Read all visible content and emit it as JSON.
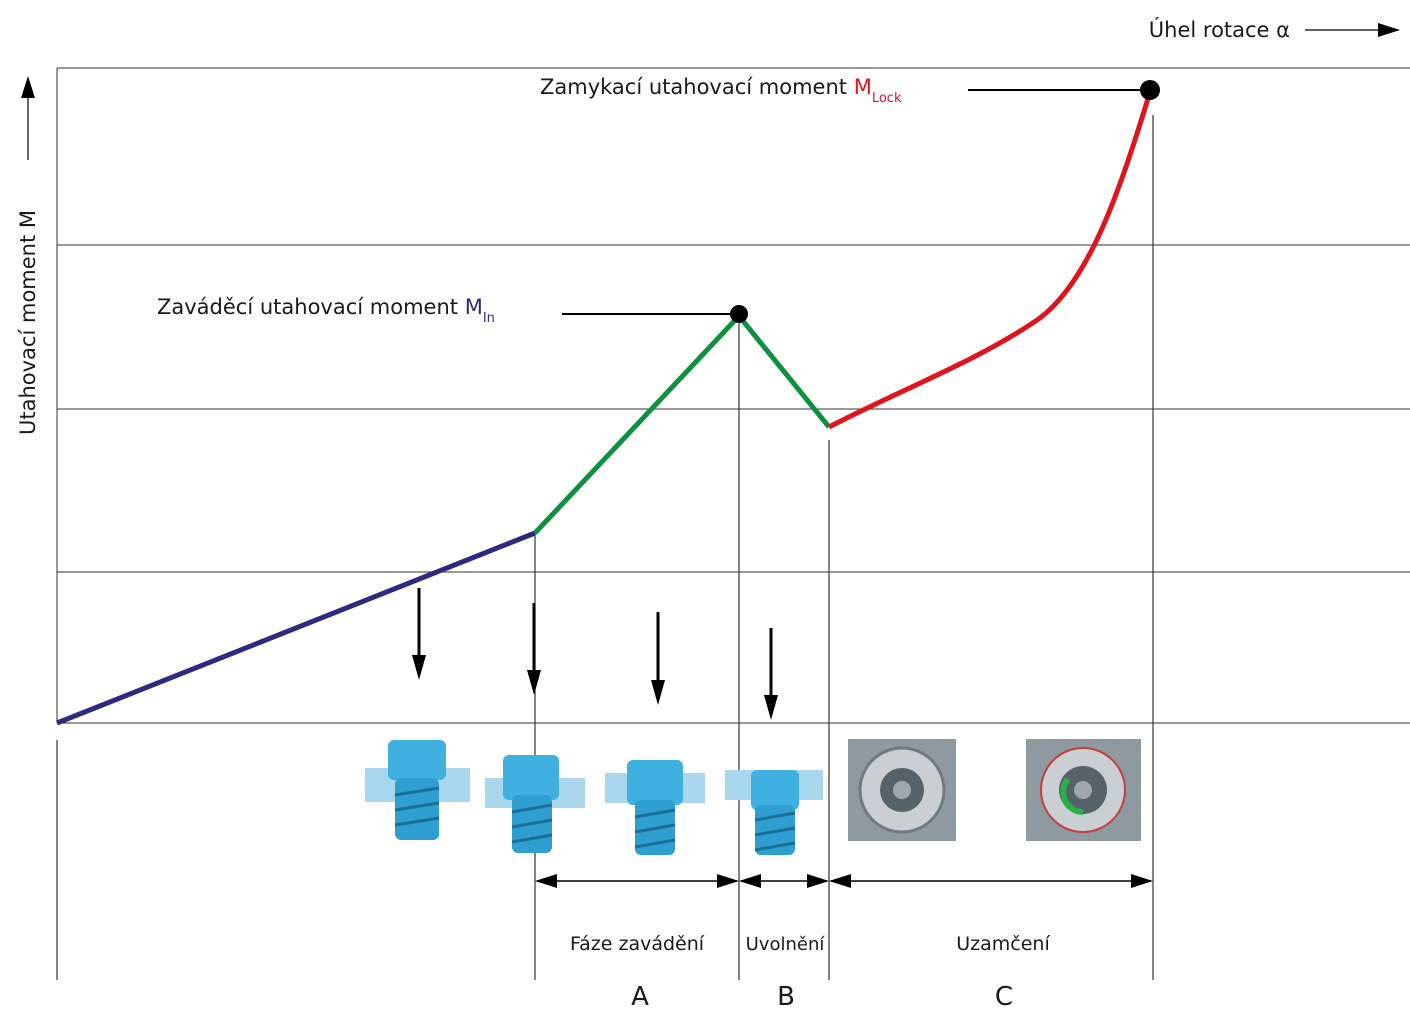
{
  "x_axis_label": "Úhel rotace α",
  "y_axis_label": "Utahovací moment M",
  "annotations": [
    {
      "label": "Zamykací  utahovací moment",
      "symbol": "M",
      "subscript": "Lock"
    },
    {
      "label": "Zaváděcí utahovací moment",
      "symbol": "M",
      "subscript": "In"
    }
  ],
  "phases": [
    {
      "name": "Fáze zavádění",
      "letter": "A"
    },
    {
      "name": "Uvolnění",
      "letter": "B"
    },
    {
      "name": "Uzamčení",
      "letter": "C"
    }
  ]
}
